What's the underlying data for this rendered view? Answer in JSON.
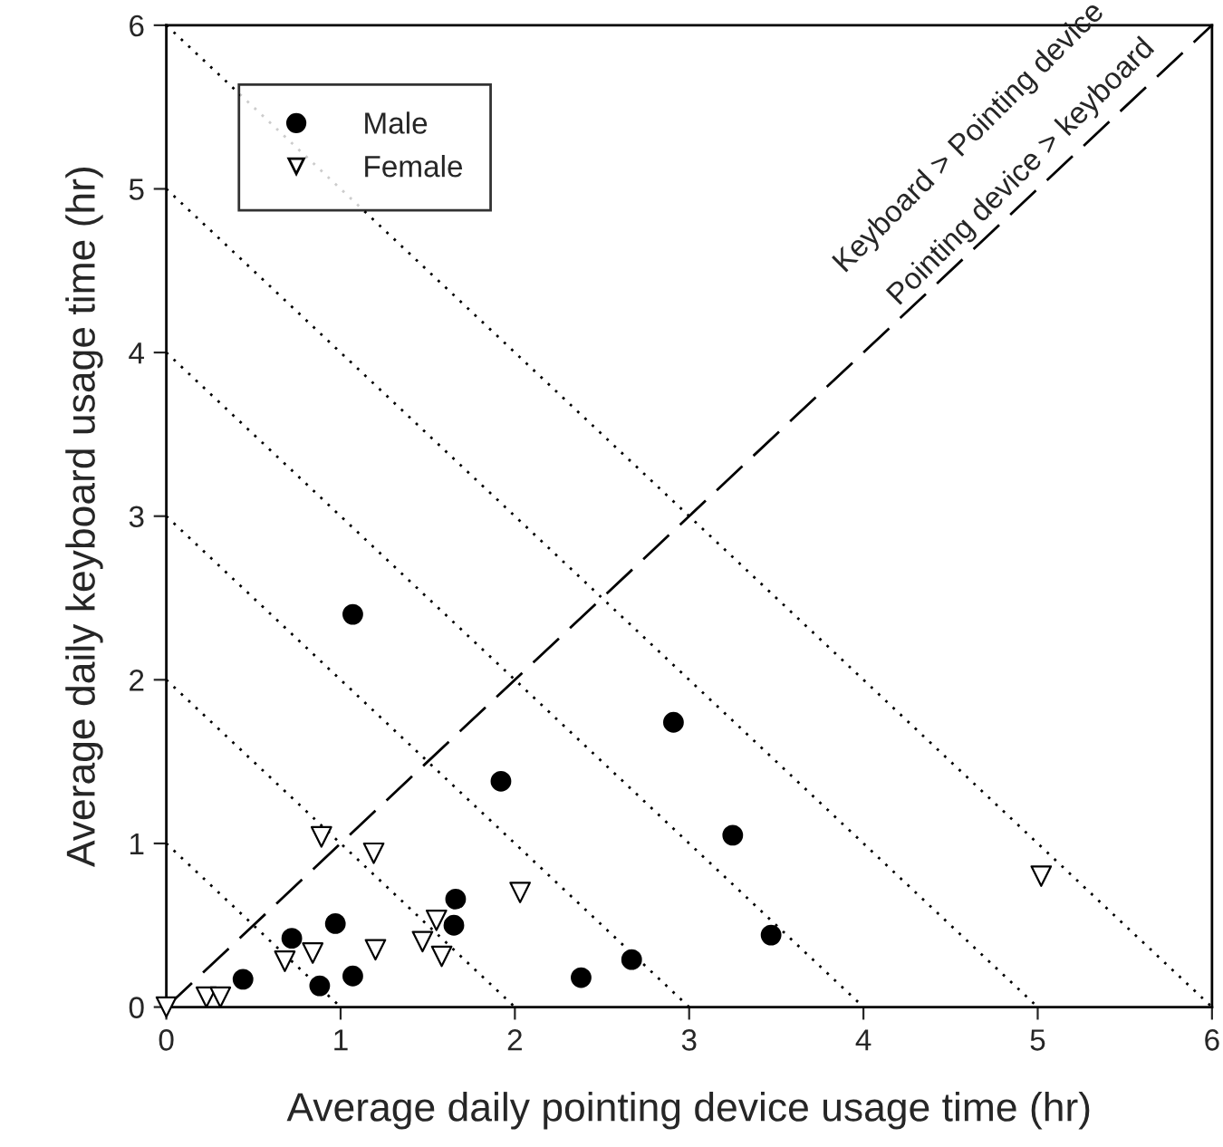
{
  "chart_data": {
    "type": "scatter",
    "xlabel": "Average daily pointing device usage time (hr)",
    "ylabel": "Average daily keyboard usage time (hr)",
    "xlim": [
      0,
      6
    ],
    "ylim": [
      0,
      6
    ],
    "xticks": [
      0,
      1,
      2,
      3,
      4,
      5,
      6
    ],
    "yticks": [
      0,
      1,
      2,
      3,
      4,
      5,
      6
    ],
    "grid": false,
    "legend": "top left",
    "annotations": [
      "Keyboard > Pointing device",
      "Pointing device > keyboard"
    ],
    "series": [
      {
        "name": "Male",
        "marker": "circle",
        "color": "#000000",
        "x": [
          1.07,
          2.91,
          1.92,
          1.66,
          1.65,
          0.97,
          0.72,
          0.44,
          0.88,
          1.07,
          2.38,
          2.67,
          3.25,
          3.47
        ],
        "values": [
          2.4,
          1.74,
          1.38,
          0.66,
          0.5,
          0.51,
          0.42,
          0.17,
          0.13,
          0.19,
          0.18,
          0.29,
          1.05,
          0.44
        ]
      },
      {
        "name": "Female",
        "marker": "triangle",
        "color": "#ffffff",
        "x": [
          0.89,
          1.19,
          2.03,
          1.55,
          1.47,
          1.58,
          1.2,
          0.84,
          0.68,
          0.23,
          0.31,
          0,
          5.02
        ],
        "values": [
          1.04,
          0.94,
          0.7,
          0.53,
          0.4,
          0.31,
          0.35,
          0.33,
          0.28,
          0.06,
          0.06,
          0,
          0.8
        ]
      },
      {
        "type": "line",
        "line_style": "dashed",
        "color": "#000000",
        "x": [
          0,
          6
        ],
        "values": [
          0,
          6
        ]
      },
      {
        "type": "line",
        "line_style": "dotted",
        "color": "#000000",
        "x": [
          0,
          1
        ],
        "values": [
          1,
          0
        ]
      },
      {
        "type": "line",
        "line_style": "dotted",
        "color": "#000000",
        "x": [
          0,
          2
        ],
        "values": [
          2,
          0
        ]
      },
      {
        "type": "line",
        "line_style": "dotted",
        "color": "#000000",
        "x": [
          0,
          3
        ],
        "values": [
          3,
          0
        ]
      },
      {
        "type": "line",
        "line_style": "dotted",
        "color": "#000000",
        "x": [
          0,
          4
        ],
        "values": [
          4,
          0
        ]
      },
      {
        "type": "line",
        "line_style": "dotted",
        "color": "#000000",
        "x": [
          0,
          5
        ],
        "values": [
          5,
          0
        ]
      },
      {
        "type": "line",
        "line_style": "dotted",
        "color": "#000000",
        "x": [
          0,
          6
        ],
        "values": [
          6,
          0
        ]
      }
    ]
  }
}
